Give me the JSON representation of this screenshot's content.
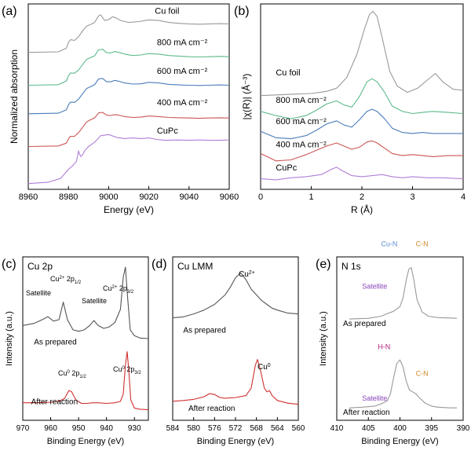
{
  "chart_data": [
    {
      "panel_label": "(a)",
      "type": "line",
      "xlabel": "Energy (eV)",
      "ylabel": "Normalized absorption",
      "xlim": [
        8960,
        9060
      ],
      "x_ticks": [
        8960,
        8980,
        9000,
        9020,
        9040,
        9060
      ],
      "legend_placement": "inline labels right",
      "series": [
        {
          "name": "Cu foil",
          "color": "#999999",
          "offset": 4.6,
          "x": [
            8960,
            8975,
            8979,
            8980,
            8981,
            8983,
            8985,
            8987,
            8989,
            8991,
            8993,
            8995,
            8996,
            8998,
            9000,
            9002,
            9004,
            9006,
            9010,
            9015,
            9020,
            9025,
            9030,
            9035,
            9040,
            9045,
            9050,
            9055,
            9060
          ],
          "y": [
            0,
            0.02,
            0.15,
            0.35,
            0.45,
            0.42,
            0.55,
            0.75,
            0.92,
            0.98,
            1.05,
            1.28,
            1.32,
            1.12,
            1.15,
            1.25,
            1.2,
            1.12,
            1.05,
            1.08,
            1.14,
            1.12,
            1.05,
            1.02,
            1.0,
            0.99,
            1.0,
            1.01,
            1.0
          ]
        },
        {
          "name": "800 mA cm⁻²",
          "color": "#5dba8c",
          "offset": 3.45,
          "x": [
            8960,
            8975,
            8979,
            8980,
            8981,
            8983,
            8985,
            8987,
            8989,
            8991,
            8993,
            8995,
            8997,
            8999,
            9001,
            9003,
            9005,
            9008,
            9012,
            9016,
            9020,
            9025,
            9030,
            9035,
            9040,
            9045,
            9050,
            9055,
            9060
          ],
          "y": [
            0,
            0.02,
            0.15,
            0.33,
            0.43,
            0.42,
            0.53,
            0.72,
            0.9,
            0.97,
            1.03,
            1.24,
            1.26,
            1.14,
            1.13,
            1.18,
            1.15,
            1.09,
            1.04,
            1.06,
            1.11,
            1.09,
            1.04,
            1.02,
            1.0,
            0.99,
            1.0,
            1.01,
            1.0
          ]
        },
        {
          "name": "600 mA cm⁻²",
          "color": "#4a7db9",
          "offset": 2.45,
          "x": [
            8960,
            8975,
            8979,
            8980,
            8981,
            8983,
            8985,
            8987,
            8989,
            8991,
            8993,
            8995,
            8997,
            8999,
            9001,
            9003,
            9005,
            9008,
            9012,
            9016,
            9020,
            9025,
            9030,
            9035,
            9040,
            9045,
            9050,
            9055,
            9060
          ],
          "y": [
            0,
            0.02,
            0.14,
            0.31,
            0.41,
            0.4,
            0.51,
            0.7,
            0.88,
            0.95,
            1.02,
            1.22,
            1.24,
            1.12,
            1.12,
            1.17,
            1.14,
            1.08,
            1.04,
            1.05,
            1.1,
            1.08,
            1.03,
            1.01,
            1.0,
            0.99,
            1.0,
            1.01,
            1.0
          ]
        },
        {
          "name": "400 mA cm⁻²",
          "color": "#cc5555",
          "offset": 1.3,
          "x": [
            8960,
            8975,
            8979,
            8980,
            8981,
            8983,
            8985,
            8987,
            8989,
            8991,
            8993,
            8995,
            8997,
            8999,
            9001,
            9003,
            9005,
            9008,
            9012,
            9016,
            9020,
            9025,
            9030,
            9035,
            9040,
            9045,
            9050,
            9055,
            9060
          ],
          "y": [
            0,
            0.02,
            0.12,
            0.27,
            0.36,
            0.36,
            0.48,
            0.67,
            0.86,
            0.94,
            1.0,
            1.18,
            1.2,
            1.1,
            1.09,
            1.12,
            1.1,
            1.05,
            1.02,
            1.03,
            1.07,
            1.05,
            1.02,
            1.01,
            1.0,
            0.99,
            1.0,
            1.01,
            1.0
          ]
        },
        {
          "name": "CuPc",
          "color": "#b07fd6",
          "offset": 0.0,
          "x": [
            8960,
            8970,
            8976,
            8980,
            8982,
            8984,
            8985,
            8986,
            8987,
            8988,
            8990,
            8993,
            8996,
            9000,
            9004,
            9008,
            9012,
            9016,
            9020,
            9024,
            9028,
            9035,
            9040,
            9045,
            9050,
            9055,
            9060
          ],
          "y": [
            0,
            0.05,
            0.18,
            0.5,
            0.62,
            0.78,
            1.15,
            0.95,
            1.0,
            1.15,
            1.3,
            1.45,
            1.68,
            1.72,
            1.62,
            1.58,
            1.6,
            1.58,
            1.6,
            1.55,
            1.52,
            1.53,
            1.52,
            1.53,
            1.52,
            1.52,
            1.53
          ]
        }
      ]
    },
    {
      "panel_label": "(b)",
      "type": "line",
      "xlabel": "R (Å)",
      "ylabel": "|χ(R)| (Å⁻³)",
      "xlim": [
        0,
        4
      ],
      "x_ticks": [
        0,
        1,
        2,
        3,
        4
      ],
      "legend_placement": "inline labels left",
      "series": [
        {
          "name": "Cu foil",
          "color": "#999999",
          "offset": 4.2,
          "x": [
            0,
            0.5,
            1.0,
            1.3,
            1.5,
            1.7,
            1.9,
            2.05,
            2.15,
            2.22,
            2.3,
            2.4,
            2.55,
            2.7,
            2.9,
            3.1,
            3.3,
            3.45,
            3.6,
            3.8,
            4.0
          ],
          "y": [
            0.05,
            0.1,
            0.15,
            0.25,
            0.4,
            0.9,
            2.0,
            3.2,
            3.9,
            4.05,
            3.8,
            2.8,
            1.2,
            0.5,
            0.2,
            0.4,
            0.8,
            1.1,
            0.7,
            0.35,
            0.3
          ]
        },
        {
          "name": "800 mA cm⁻²",
          "color": "#5dba8c",
          "offset": 3.0,
          "x": [
            0,
            0.3,
            0.6,
            0.9,
            1.1,
            1.3,
            1.5,
            1.65,
            1.8,
            1.95,
            2.1,
            2.2,
            2.3,
            2.45,
            2.6,
            2.8,
            3.0,
            3.2,
            3.4,
            3.7,
            4.0
          ],
          "y": [
            0.5,
            0.3,
            0.15,
            0.3,
            0.55,
            0.85,
            1.0,
            0.8,
            0.7,
            1.2,
            1.9,
            2.05,
            1.9,
            1.4,
            0.75,
            0.5,
            0.4,
            0.45,
            0.5,
            0.45,
            0.4
          ]
        },
        {
          "name": "600 mA cm⁻²",
          "color": "#4a7db9",
          "offset": 2.0,
          "x": [
            0,
            0.3,
            0.6,
            0.9,
            1.1,
            1.3,
            1.5,
            1.65,
            1.8,
            1.95,
            2.1,
            2.2,
            2.3,
            2.45,
            2.6,
            2.8,
            3.0,
            3.2,
            3.4,
            3.7,
            4.0
          ],
          "y": [
            0.55,
            0.25,
            0.2,
            0.35,
            0.6,
            0.9,
            1.05,
            0.85,
            0.75,
            1.1,
            1.5,
            1.6,
            1.5,
            1.15,
            0.7,
            0.5,
            0.45,
            0.5,
            0.45,
            0.45,
            0.45
          ]
        },
        {
          "name": "400 mA cm⁻²",
          "color": "#cc5555",
          "offset": 0.95,
          "x": [
            0,
            0.3,
            0.6,
            0.9,
            1.1,
            1.3,
            1.5,
            1.65,
            1.8,
            1.95,
            2.1,
            2.2,
            2.3,
            2.45,
            2.6,
            2.8,
            3.0,
            3.2,
            3.4,
            3.7,
            4.0
          ],
          "y": [
            0.55,
            0.2,
            0.25,
            0.5,
            0.7,
            0.9,
            1.05,
            0.9,
            0.75,
            0.85,
            1.1,
            1.15,
            1.05,
            0.8,
            0.55,
            0.45,
            0.5,
            0.45,
            0.4,
            0.45,
            0.45
          ]
        },
        {
          "name": "CuPc",
          "color": "#b07fd6",
          "offset": 0.0,
          "x": [
            0,
            0.3,
            0.6,
            0.9,
            1.2,
            1.4,
            1.5,
            1.6,
            1.8,
            2.0,
            2.2,
            2.4,
            2.6,
            2.8,
            3.0,
            3.3,
            3.6,
            4.0
          ],
          "y": [
            0.3,
            0.25,
            0.35,
            0.4,
            0.5,
            0.75,
            0.85,
            0.7,
            0.45,
            0.4,
            0.45,
            0.5,
            0.4,
            0.35,
            0.4,
            0.35,
            0.35,
            0.3
          ]
        }
      ]
    },
    {
      "panel_label": "(c)",
      "type": "line",
      "inset_title": "Cu 2p",
      "xlabel": "Binding Energy (eV)",
      "ylabel": "Intensity (a.u.)",
      "xlim": [
        970,
        925
      ],
      "x_ticks": [
        970,
        960,
        950,
        940,
        930
      ],
      "series": [
        {
          "name": "As prepared",
          "color": "#555555",
          "offset": 2.4,
          "x": [
            970,
            966,
            963,
            961,
            959,
            957,
            955.5,
            954,
            952,
            950,
            948,
            946,
            944.5,
            943,
            941,
            939,
            937,
            935,
            934,
            933.2,
            932.5,
            931.5,
            930,
            928,
            925
          ],
          "y": [
            0.55,
            0.62,
            0.75,
            0.85,
            0.7,
            0.75,
            1.35,
            0.75,
            0.4,
            0.35,
            0.4,
            0.55,
            0.72,
            0.55,
            0.45,
            0.5,
            0.65,
            1.1,
            2.2,
            2.55,
            1.6,
            0.4,
            0.2,
            0.12,
            0.1
          ]
        },
        {
          "name": "After reaction",
          "color": "#d03030",
          "offset": 0.0,
          "x": [
            970,
            965,
            960,
            957,
            955,
            953.5,
            952.5,
            951,
            949,
            947,
            945,
            943,
            940,
            937,
            935,
            934,
            933.2,
            932.6,
            932,
            931.3,
            930,
            928,
            925
          ],
          "y": [
            0.3,
            0.3,
            0.32,
            0.35,
            0.45,
            0.72,
            0.68,
            0.4,
            0.28,
            0.28,
            0.3,
            0.3,
            0.28,
            0.3,
            0.35,
            0.6,
            1.6,
            2.05,
            1.4,
            0.4,
            0.12,
            0.08,
            0.06
          ]
        }
      ]
    },
    {
      "panel_label": "(d)",
      "type": "line",
      "inset_title": "Cu LMM",
      "xlabel": "Binding Energy (eV)",
      "ylabel": "",
      "xlim": [
        584,
        560
      ],
      "x_ticks": [
        584,
        580,
        576,
        572,
        568,
        564,
        560
      ],
      "series": [
        {
          "name": "As prepared",
          "color": "#555555",
          "offset": 2.3,
          "x": [
            584,
            582,
            580,
            578,
            576,
            574,
            573,
            572,
            571,
            570,
            569,
            568,
            567,
            566,
            565,
            564,
            562,
            560
          ],
          "y": [
            0.1,
            0.12,
            0.2,
            0.3,
            0.45,
            0.7,
            0.9,
            1.15,
            1.28,
            1.1,
            0.85,
            0.7,
            0.55,
            0.45,
            0.35,
            0.3,
            0.22,
            0.2
          ]
        },
        {
          "name": "After reaction",
          "color": "#d03030",
          "offset": 0.0,
          "x": [
            584,
            582,
            580,
            578,
            577,
            576,
            575,
            574,
            572,
            570,
            569,
            568.2,
            567.8,
            567.2,
            566.5,
            566,
            565.5,
            565,
            564,
            562,
            560
          ],
          "y": [
            0.2,
            0.22,
            0.25,
            0.32,
            0.4,
            0.38,
            0.3,
            0.28,
            0.3,
            0.35,
            0.55,
            1.15,
            1.3,
            1.0,
            0.55,
            0.45,
            0.48,
            0.35,
            0.22,
            0.15,
            0.12
          ]
        }
      ]
    },
    {
      "panel_label": "(e)",
      "type": "line",
      "inset_title": "N 1s",
      "xlabel": "Binding Energy (eV)",
      "ylabel": "Intensity (a.u.)",
      "xlim": [
        410,
        390
      ],
      "x_ticks": [
        410,
        405,
        400,
        395,
        390
      ],
      "annotations": {
        "top_group": [
          "Cu-N",
          "C-N",
          "Satellite",
          "As prepared"
        ],
        "bottom_group": [
          "H-N",
          "C-N",
          "Satellite",
          "After reaction"
        ]
      },
      "series": [
        {
          "name": "As prepared",
          "color": "#999999",
          "offset": 2.55,
          "x": [
            408,
            405,
            403,
            402,
            401,
            400,
            399.5,
            399,
            398.6,
            398.2,
            397.8,
            397.3,
            396.5,
            395.5,
            394,
            392,
            391
          ],
          "y": [
            0,
            0.02,
            0.08,
            0.15,
            0.22,
            0.35,
            0.6,
            1.1,
            1.4,
            1.45,
            1.1,
            0.55,
            0.2,
            0.08,
            0.04,
            0.03,
            0.02
          ]
        },
        {
          "name": "After reaction",
          "color": "#999999",
          "offset": 0.0,
          "x": [
            408,
            406,
            404,
            403,
            402,
            401.5,
            401,
            400.5,
            400,
            399.5,
            399,
            398.5,
            398,
            397.5,
            397,
            396,
            395,
            394,
            392,
            391
          ],
          "y": [
            0.05,
            0.07,
            0.1,
            0.16,
            0.25,
            0.45,
            0.9,
            1.3,
            1.4,
            1.2,
            0.8,
            0.55,
            0.5,
            0.45,
            0.35,
            0.18,
            0.1,
            0.07,
            0.05,
            0.05
          ]
        }
      ]
    }
  ]
}
